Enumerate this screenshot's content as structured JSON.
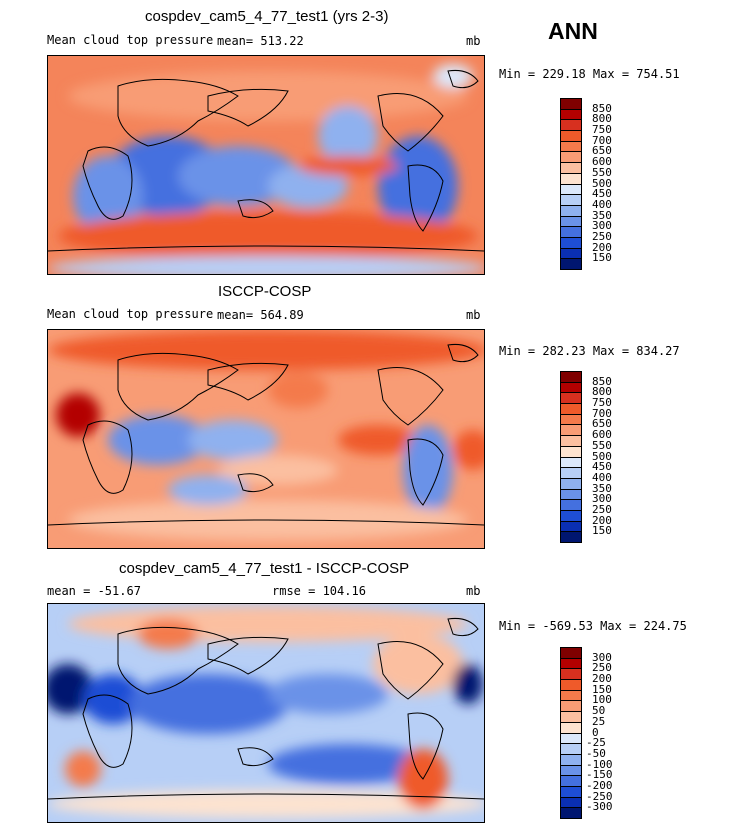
{
  "season": "ANN",
  "panels": [
    {
      "title": "cospdev_cam5_4_77_test1 (yrs 2-3)",
      "left_label": "Mean cloud top pressure",
      "mean_label": "mean= 513.22",
      "units": "mb",
      "minmax": "Min = 229.18 Max = 754.51",
      "colorbar_labels": [
        "850",
        "800",
        "750",
        "700",
        "650",
        "600",
        "550",
        "500",
        "450",
        "400",
        "350",
        "300",
        "250",
        "200",
        "150"
      ],
      "colors": [
        "#7f0000",
        "#b30000",
        "#d7301f",
        "#ef5a2a",
        "#f47a4b",
        "#f89c75",
        "#fbbfa0",
        "#fde3d0",
        "#dbe8fb",
        "#b7cff6",
        "#8fb1ef",
        "#6a92e8",
        "#4470df",
        "#1e4ed5",
        "#0a2fb2",
        "#001670"
      ]
    },
    {
      "title": "ISCCP-COSP",
      "left_label": "Mean cloud top pressure",
      "mean_label": "mean= 564.89",
      "units": "mb",
      "minmax": "Min = 282.23 Max = 834.27",
      "colorbar_labels": [
        "850",
        "800",
        "750",
        "700",
        "650",
        "600",
        "550",
        "500",
        "450",
        "400",
        "350",
        "300",
        "250",
        "200",
        "150"
      ],
      "colors": [
        "#7f0000",
        "#b30000",
        "#d7301f",
        "#ef5a2a",
        "#f47a4b",
        "#f89c75",
        "#fbbfa0",
        "#fde3d0",
        "#dbe8fb",
        "#b7cff6",
        "#8fb1ef",
        "#6a92e8",
        "#4470df",
        "#1e4ed5",
        "#0a2fb2",
        "#001670"
      ]
    },
    {
      "title": "cospdev_cam5_4_77_test1 - ISCCP-COSP",
      "left_label": "mean = -51.67",
      "mean_label": "rmse = 104.16",
      "units": "mb",
      "minmax": "Min = -569.53 Max = 224.75",
      "colorbar_labels": [
        "300",
        "250",
        "200",
        "150",
        "100",
        "50",
        "25",
        "0",
        "-25",
        "-50",
        "-100",
        "-150",
        "-200",
        "-250",
        "-300"
      ],
      "colors": [
        "#7f0000",
        "#b30000",
        "#d7301f",
        "#ef5a2a",
        "#f47a4b",
        "#f89c75",
        "#fbbfa0",
        "#fde3d0",
        "#dbe8fb",
        "#b7cff6",
        "#8fb1ef",
        "#6a92e8",
        "#4470df",
        "#1e4ed5",
        "#0a2fb2",
        "#001670"
      ]
    }
  ]
}
